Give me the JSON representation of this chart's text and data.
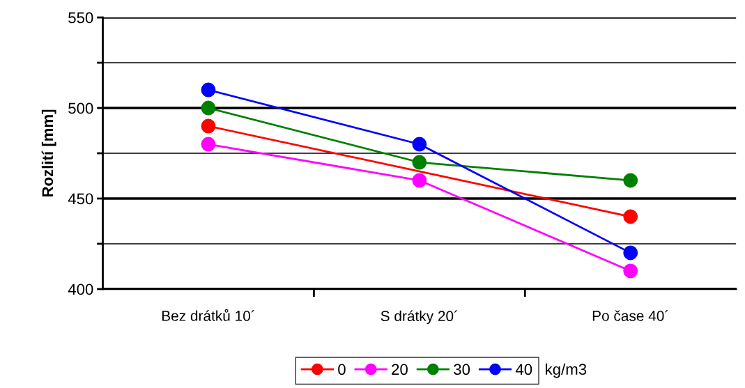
{
  "chart_data": {
    "type": "line",
    "ylabel": "Rozlití [mm]",
    "legend_title": "kg/m3",
    "categories": [
      "Bez drátků 10´",
      "S drátky 20´",
      "Po čase 40´"
    ],
    "series": [
      {
        "name": "0",
        "color": "#ff0000",
        "values": [
          490,
          null,
          440
        ]
      },
      {
        "name": "20",
        "color": "#ff00ff",
        "values": [
          480,
          460,
          410
        ]
      },
      {
        "name": "30",
        "color": "#008000",
        "values": [
          500,
          470,
          460
        ]
      },
      {
        "name": "40",
        "color": "#0000ff",
        "values": [
          510,
          480,
          420
        ]
      }
    ],
    "ylim": [
      400,
      550
    ],
    "yticks": [
      400,
      {
        "value": 425,
        "label": null
      },
      450,
      {
        "value": 475,
        "label": null
      },
      500,
      {
        "value": 525,
        "label": null
      },
      550
    ],
    "grid": "y",
    "legend": "bottom",
    "marker": "circle",
    "line_style": "solid"
  }
}
